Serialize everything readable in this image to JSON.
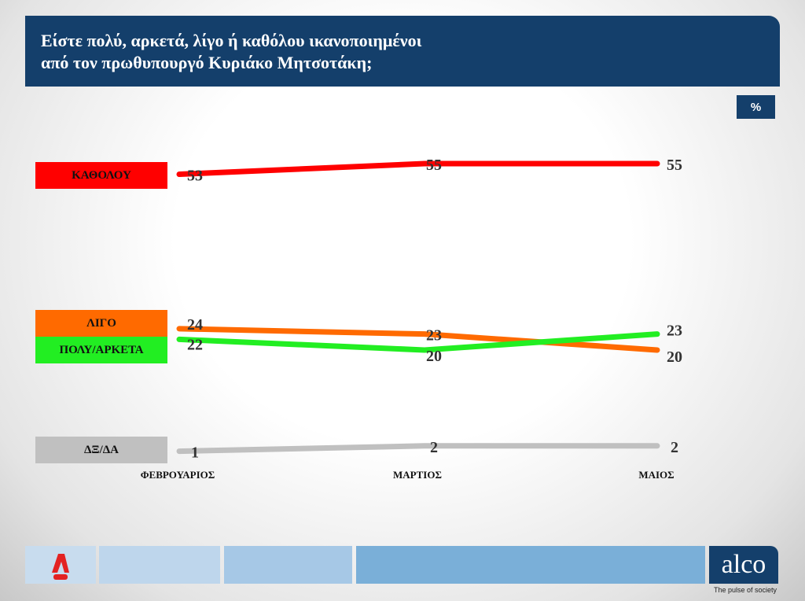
{
  "header": {
    "title_line1": "Είστε πολύ, αρκετά, λίγο ή καθόλου ικανοποιημένοι",
    "title_line2": "από τον πρωθυπουργό Κυριάκο Μητσοτάκη;",
    "unit": "%"
  },
  "chart_data": {
    "type": "line",
    "title": "Είστε πολύ, αρκετά, λίγο ή καθόλου ικανοποιημένοι από τον πρωθυπουργό Κυριάκο Μητσοτάκη;",
    "categories": [
      "ΦΕΒΡΟΥΑΡΙΟΣ",
      "ΜΑΡΤΙΟΣ",
      "ΜΑΙΟΣ"
    ],
    "ylabel": "%",
    "series": [
      {
        "name": "ΚΑΘΟΛΟΥ",
        "values": [
          53,
          55,
          55
        ],
        "color": "#ff0000"
      },
      {
        "name": "ΛΙΓΟ",
        "values": [
          24,
          23,
          20
        ],
        "color": "#ff6a00"
      },
      {
        "name": "ΠΟΛΥ/ΑΡΚΕΤΑ",
        "values": [
          22,
          20,
          23
        ],
        "color": "#22ee22"
      },
      {
        "name": "ΔΞ/ΔΑ",
        "values": [
          1,
          2,
          2
        ],
        "color": "#c0c0c0"
      }
    ]
  },
  "footer": {
    "logo_left": "A NEWS",
    "brand": "alco",
    "tagline": "The pulse of society"
  }
}
